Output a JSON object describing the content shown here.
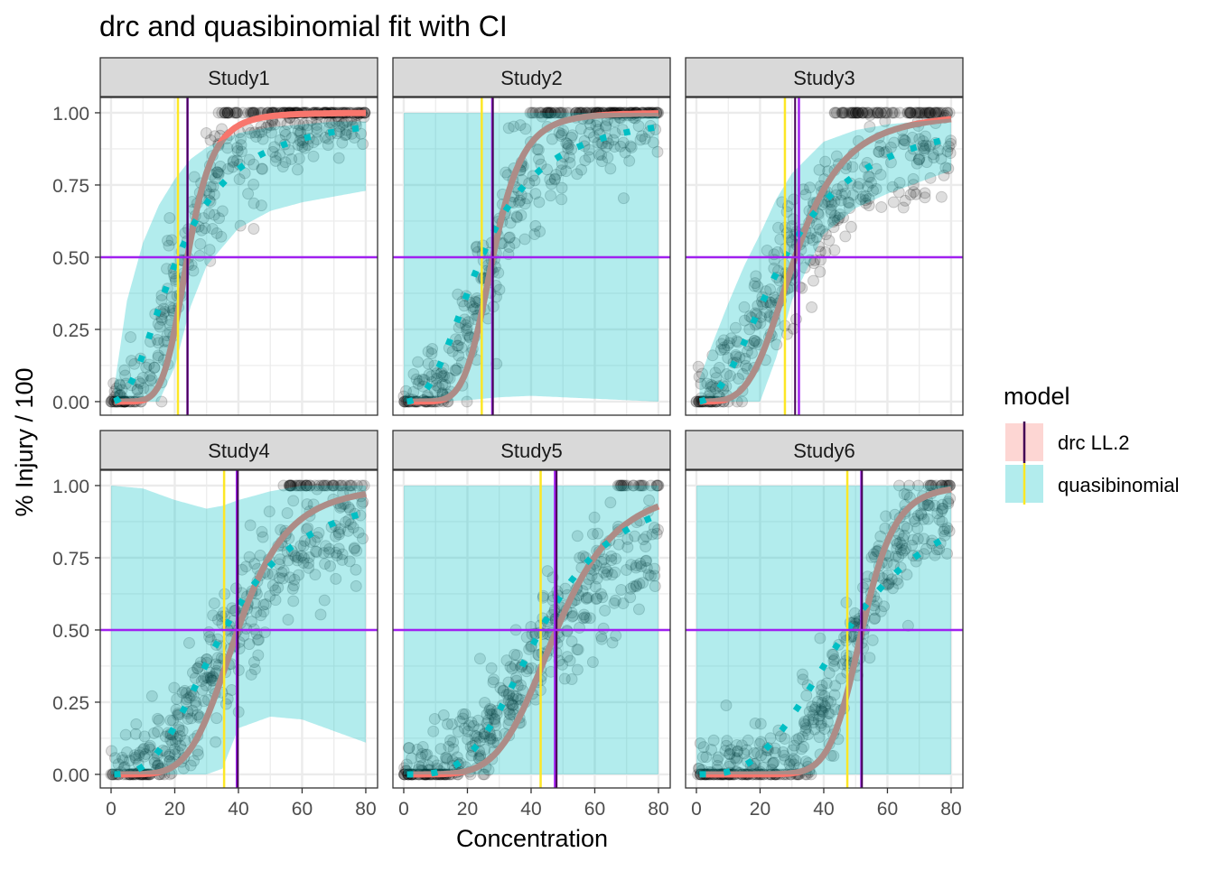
{
  "chart_data": {
    "type": "scatter",
    "title": "drc and quasibinomial fit with CI",
    "xlabel": "Concentration",
    "ylabel": "% Injury / 100",
    "xlim": [
      -3.4,
      83.7
    ],
    "ylim": [
      -0.047,
      1.053
    ],
    "x_ticks": [
      "0",
      "20",
      "40",
      "60",
      "80"
    ],
    "y_ticks": [
      "0.00",
      "0.25",
      "0.50",
      "0.75",
      "1.00"
    ],
    "grid": true,
    "reference_hline": 0.5,
    "legend": {
      "title": "model",
      "position": "right",
      "entries": [
        {
          "label": "drc LL.2",
          "fill": "#F8766D",
          "line_color": "#440154"
        },
        {
          "label": "quasibinomial",
          "fill": "#00BFC4",
          "line_color": "#FDE725"
        }
      ]
    },
    "colors": {
      "drc": "#F8766D",
      "quasibinomial": "#00BFC4",
      "hline": "#A020F0",
      "drc_ed50": "#440154",
      "quasi_ed50": "#FDE725",
      "points": "#000000"
    },
    "panels": [
      {
        "strip": "Study1",
        "ed50_drc": 24,
        "ed50_quasi": 21,
        "ed50_ref": 24,
        "slope_drc": 6,
        "slope_quasi": 2.2,
        "ci_x": [
          1,
          5,
          10,
          15,
          20,
          25,
          30,
          40,
          50,
          60,
          70,
          80
        ],
        "ci_lower": [
          0,
          0,
          0,
          0,
          0.12,
          0.33,
          0.47,
          0.6,
          0.66,
          0.69,
          0.71,
          0.73
        ],
        "ci_upper": [
          0.05,
          0.35,
          0.55,
          0.68,
          0.77,
          0.84,
          0.88,
          0.93,
          0.95,
          0.96,
          0.97,
          0.97
        ]
      },
      {
        "strip": "Study2",
        "ed50_drc": 28,
        "ed50_quasi": 24.5,
        "ed50_ref": 27.8,
        "slope_drc": 6,
        "slope_quasi": 2.5,
        "ci_x": [
          0,
          10,
          20,
          30,
          40,
          50,
          60,
          70,
          80
        ],
        "ci_lower": [
          0,
          0,
          0.005,
          0.015,
          0.02,
          0.015,
          0.01,
          0.005,
          0
        ],
        "ci_upper": [
          1,
          1,
          1,
          1,
          1,
          1,
          1,
          1,
          1
        ]
      },
      {
        "strip": "Study3",
        "ed50_drc": 31,
        "ed50_quasi": 27.8,
        "ed50_ref": 32.2,
        "slope_drc": 4,
        "slope_quasi": 2.2,
        "ci_x": [
          1,
          5,
          10,
          15,
          20,
          25,
          30,
          40,
          50,
          60,
          70,
          80
        ],
        "ci_lower": [
          0,
          0,
          0,
          0,
          0,
          0.15,
          0.35,
          0.58,
          0.67,
          0.72,
          0.76,
          0.8
        ],
        "ci_upper": [
          0.08,
          0.2,
          0.34,
          0.47,
          0.58,
          0.7,
          0.79,
          0.9,
          0.94,
          0.96,
          0.97,
          0.98
        ]
      },
      {
        "strip": "Study4",
        "ed50_drc": 39.8,
        "ed50_quasi": 35.5,
        "ed50_ref": 39.5,
        "slope_drc": 5,
        "slope_quasi": 2.8,
        "ci_x": [
          0,
          10,
          20,
          30,
          35,
          40,
          50,
          60,
          70,
          80
        ],
        "ci_lower": [
          0,
          0,
          0,
          0,
          0.02,
          0.16,
          0.2,
          0.19,
          0.15,
          0.11
        ],
        "ci_upper": [
          1,
          0.99,
          0.95,
          0.92,
          0.93,
          0.95,
          0.98,
          1,
          1,
          1
        ]
      },
      {
        "strip": "Study5",
        "ed50_drc": 48,
        "ed50_quasi": 43,
        "ed50_ref": 47.5,
        "slope_drc": 5,
        "slope_quasi": 3.5,
        "ci_x": [
          0,
          80
        ],
        "ci_lower": [
          0,
          0
        ],
        "ci_upper": [
          1,
          1
        ]
      },
      {
        "strip": "Study6",
        "ed50_drc": 52,
        "ed50_quasi": 47.4,
        "ed50_ref": 51.8,
        "slope_drc": 10,
        "slope_quasi": 3,
        "ci_x": [
          0,
          80
        ],
        "ci_lower": [
          0,
          0
        ],
        "ci_upper": [
          1,
          1
        ]
      }
    ]
  }
}
